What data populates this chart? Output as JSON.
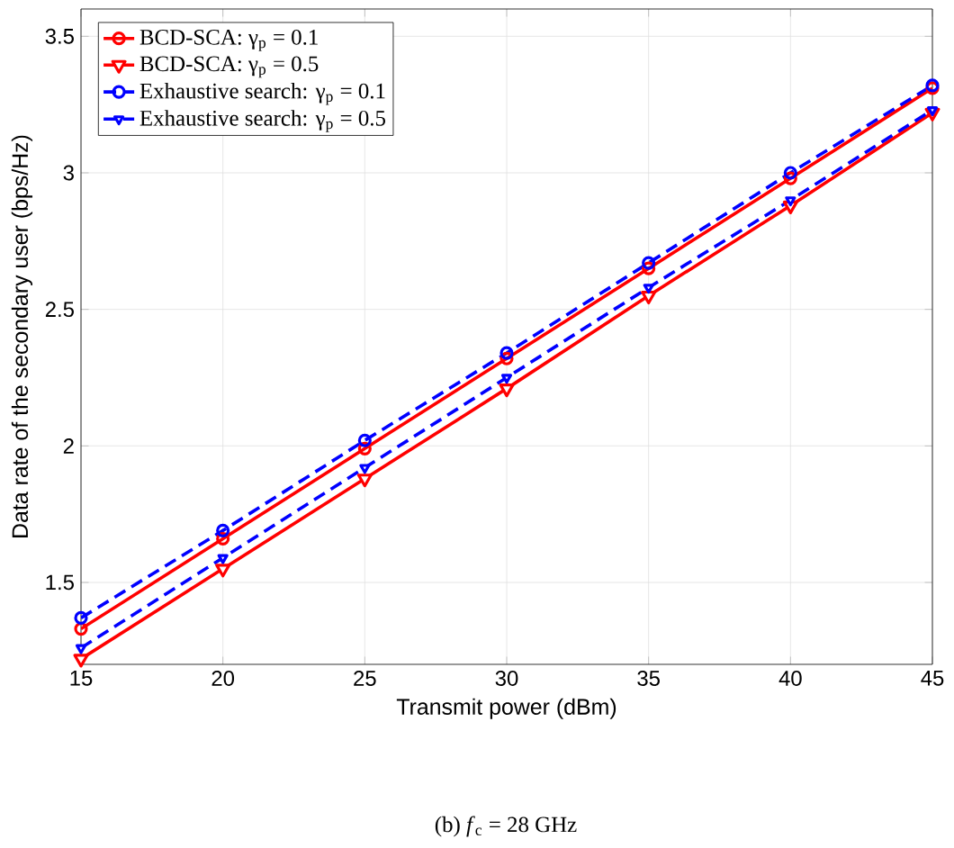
{
  "chart_data": {
    "type": "line",
    "xlabel": "Transmit power (dBm)",
    "ylabel": "Data rate of the secondary user (bps/Hz)",
    "x": [
      15,
      20,
      25,
      30,
      35,
      40,
      45
    ],
    "xlim": [
      15,
      45
    ],
    "xticks": [
      15,
      20,
      25,
      30,
      35,
      40,
      45
    ],
    "ylim": [
      1.2,
      3.6
    ],
    "yticks": [
      1.5,
      2,
      2.5,
      3,
      3.5
    ],
    "grid": true,
    "legend": "top left",
    "series": [
      {
        "name": "BCD-SCA: γ$_{p}$ = 0.1",
        "color": "#ff0000",
        "marker": "circle",
        "line_style": "solid",
        "values": [
          1.33,
          1.66,
          1.99,
          2.32,
          2.65,
          2.98,
          3.31
        ]
      },
      {
        "name": "BCD-SCA: γ$_{p}$ = 0.5",
        "color": "#ff0000",
        "marker": "triangle",
        "line_style": "solid",
        "values": [
          1.22,
          1.55,
          1.88,
          2.21,
          2.55,
          2.88,
          3.22
        ]
      },
      {
        "name": "Exhaustive search: γ$_{p}$ = 0.1",
        "color": "#0000ff",
        "marker": "circle",
        "line_style": "dashed",
        "values": [
          1.37,
          1.69,
          2.02,
          2.34,
          2.67,
          3.0,
          3.32
        ]
      },
      {
        "name": "Exhaustive search: γ$_{p}$ = 0.5",
        "color": "#0000ff",
        "marker": "triangle",
        "line_style": "dashed",
        "values": [
          1.26,
          1.59,
          1.92,
          2.25,
          2.58,
          2.9,
          3.23
        ]
      }
    ],
    "annotations": [
      "(b) *f*$_{c}$ = 28 GHz"
    ]
  }
}
